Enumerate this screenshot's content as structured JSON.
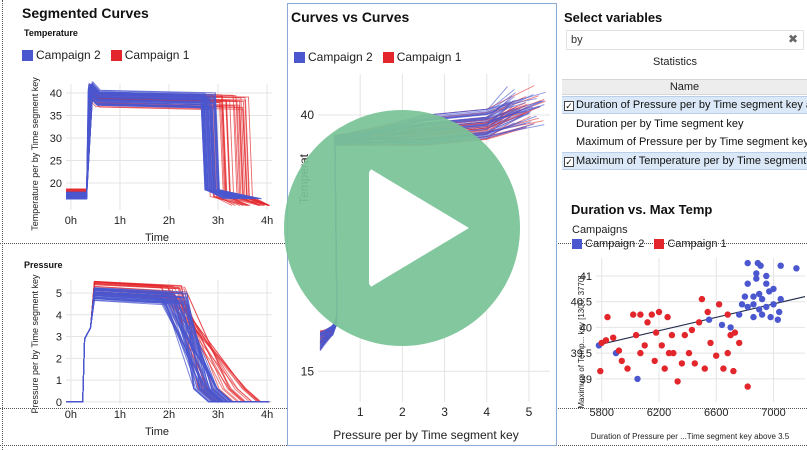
{
  "colors": {
    "campaign2": "#4a57cf",
    "campaign1": "#e3262b",
    "play": "#7ac397",
    "accent_selected": "#dbe8f7"
  },
  "left_panel": {
    "title": "Segmented Curves",
    "legend": [
      "Campaign 2",
      "Campaign 1"
    ],
    "temperature": {
      "subtitle": "Temperature",
      "ylabel": "Temperature per by Time segment key",
      "xlabel": "Time",
      "yticks": [
        "40",
        "35",
        "30",
        "25",
        "20"
      ],
      "xticks": [
        "0h",
        "1h",
        "2h",
        "3h",
        "4h"
      ]
    },
    "pressure": {
      "subtitle": "Pressure",
      "ylabel": "Pressure per by Time segment key",
      "xlabel": "Time",
      "yticks": [
        "5",
        "4",
        "3",
        "2",
        "1",
        "0"
      ],
      "xticks": [
        "0h",
        "1h",
        "2h",
        "3h",
        "4h"
      ]
    }
  },
  "middle_panel": {
    "title": "Curves vs Curves",
    "legend": [
      "Campaign 2",
      "Campaign 1"
    ],
    "ylabel": "Temperat",
    "xlabel": "Pressure per by Time segment key",
    "yticks": [
      "40",
      "15"
    ],
    "xticks": [
      "1",
      "2",
      "3",
      "4",
      "5"
    ]
  },
  "variables_panel": {
    "title": "Select variables",
    "search_value": "by",
    "clear_icon": "close-icon",
    "tab_label": "Statistics",
    "column_header": "Name",
    "rows": [
      {
        "label": "Duration of Pressure per by Time segment key al",
        "checked": true,
        "selected": true
      },
      {
        "label": "Duration per by Time segment key",
        "checked": false,
        "selected": false
      },
      {
        "label": "Maximum of Pressure per by Time segment key",
        "checked": false,
        "selected": false
      },
      {
        "label": "Maximum of Temperature per by Time segment key",
        "checked": true,
        "selected": true
      }
    ]
  },
  "scatter_panel": {
    "title": "Duration vs. Max Temp",
    "legend_title": "Campaigns",
    "legend": [
      "Campaign 2",
      "Campaign 1"
    ],
    "ylabel": "Maximum of Temp... key [1300, 3770]",
    "xlabel": "Duration of Pressure per ...Time segment key above 3.5"
  },
  "chart_data": [
    {
      "type": "line",
      "title": "Temperature",
      "xlabel": "Time",
      "ylabel": "Temperature per by Time segment key",
      "x_ticks": [
        "0h",
        "1h",
        "2h",
        "3h",
        "4h"
      ],
      "y_ticks": [
        20,
        25,
        30,
        35,
        40
      ],
      "grid": true,
      "series": [
        {
          "name": "Campaign 2",
          "values_desc": [
            [
              0,
              17
            ],
            [
              0.45,
              17
            ],
            [
              0.55,
              40
            ],
            [
              2.9,
              39
            ],
            [
              3.1,
              17
            ],
            [
              3.5,
              16.5
            ]
          ]
        },
        {
          "name": "Campaign 1",
          "values_desc": [
            [
              0,
              18
            ],
            [
              0.45,
              18
            ],
            [
              0.58,
              39
            ],
            [
              3.3,
              38
            ],
            [
              3.8,
              15
            ],
            [
              4.1,
              14.5
            ]
          ]
        }
      ]
    },
    {
      "type": "line",
      "title": "Pressure",
      "xlabel": "Time",
      "ylabel": "Pressure per by Time segment key",
      "x_ticks": [
        "0h",
        "1h",
        "2h",
        "3h",
        "4h"
      ],
      "y_ticks": [
        0,
        1,
        2,
        3,
        4,
        5
      ],
      "grid": true,
      "series": [
        {
          "name": "Campaign 2",
          "values_desc": [
            [
              0,
              0
            ],
            [
              0.3,
              0
            ],
            [
              0.35,
              3
            ],
            [
              0.55,
              5
            ],
            [
              2,
              4.6
            ],
            [
              3.1,
              0.2
            ],
            [
              3.4,
              0
            ]
          ]
        },
        {
          "name": "Campaign 1",
          "values_desc": [
            [
              0,
              0
            ],
            [
              0.3,
              0
            ],
            [
              0.38,
              3
            ],
            [
              0.6,
              5.2
            ],
            [
              2.1,
              5.1
            ],
            [
              3.7,
              0.1
            ],
            [
              4.0,
              0
            ]
          ]
        }
      ]
    },
    {
      "type": "scatter",
      "title": "Duration vs. Max Temp",
      "xlabel": "Duration of Pressure per ...Time segment key above 3.5",
      "ylabel": "Maximum of Temp... key [1300, 3770]",
      "x_ticks": [
        5800,
        6200,
        6600,
        7000
      ],
      "y_ticks": [
        39,
        39.5,
        40,
        40.5,
        41
      ],
      "xlim": [
        5760,
        7220
      ],
      "ylim": [
        38.55,
        41.35
      ],
      "series": [
        {
          "name": "Campaign 2",
          "points": [
            [
              6820,
              41.25
            ],
            [
              6880,
              41.05
            ],
            [
              6950,
              41.0
            ],
            [
              7050,
              41.2
            ],
            [
              6890,
              41.25
            ],
            [
              6910,
              41.2
            ],
            [
              7160,
              41.15
            ],
            [
              6820,
              40.85
            ],
            [
              6880,
              40.95
            ],
            [
              6950,
              40.85
            ],
            [
              6800,
              40.6
            ],
            [
              6860,
              40.6
            ],
            [
              6900,
              40.65
            ],
            [
              6920,
              40.55
            ],
            [
              6970,
              40.7
            ],
            [
              7000,
              40.75
            ],
            [
              7050,
              40.55
            ],
            [
              6780,
              40.45
            ],
            [
              6820,
              40.4
            ],
            [
              6860,
              40.45
            ],
            [
              6900,
              40.35
            ],
            [
              6950,
              40.4
            ],
            [
              7000,
              40.45
            ],
            [
              7040,
              40.3
            ],
            [
              6860,
              40.2
            ],
            [
              6920,
              40.25
            ],
            [
              6980,
              40.2
            ],
            [
              7030,
              40.15
            ],
            [
              6760,
              40.25
            ],
            [
              6700,
              40.0
            ],
            [
              6640,
              40.05
            ],
            [
              5780,
              39.65
            ],
            [
              5900,
              39.5
            ],
            [
              6050,
              39.0
            ],
            [
              6550,
              40.15
            ]
          ]
        },
        {
          "name": "Campaign 1",
          "points": [
            [
              5800,
              39.7
            ],
            [
              5830,
              39.75
            ],
            [
              5840,
              40.2
            ],
            [
              5880,
              39.8
            ],
            [
              5920,
              39.55
            ],
            [
              5940,
              39.35
            ],
            [
              5980,
              39.2
            ],
            [
              6020,
              40.25
            ],
            [
              6040,
              39.85
            ],
            [
              6070,
              40.25
            ],
            [
              6100,
              39.65
            ],
            [
              6120,
              40.1
            ],
            [
              6150,
              40.25
            ],
            [
              6180,
              39.9
            ],
            [
              6200,
              40.3
            ],
            [
              6220,
              39.65
            ],
            [
              6240,
              39.2
            ],
            [
              6270,
              39.5
            ],
            [
              6290,
              39.85
            ],
            [
              6300,
              39.5
            ],
            [
              6330,
              38.95
            ],
            [
              6360,
              39.3
            ],
            [
              6380,
              39.85
            ],
            [
              6410,
              39.5
            ],
            [
              6430,
              39.95
            ],
            [
              6450,
              39.3
            ],
            [
              6480,
              40.1
            ],
            [
              6500,
              40.55
            ],
            [
              6520,
              39.2
            ],
            [
              6540,
              40.3
            ],
            [
              6560,
              39.7
            ],
            [
              6600,
              39.45
            ],
            [
              6620,
              40.45
            ],
            [
              6650,
              39.2
            ],
            [
              6680,
              39.5
            ],
            [
              6700,
              39.85
            ],
            [
              6730,
              39.9
            ],
            [
              6760,
              39.7
            ],
            [
              6720,
              39.15
            ],
            [
              6820,
              38.85
            ],
            [
              6680,
              40.25
            ],
            [
              5790,
              39.15
            ],
            [
              6070,
              39.5
            ],
            [
              6170,
              39.35
            ],
            [
              6260,
              40.2
            ]
          ]
        }
      ],
      "trendline": [
        [
          5760,
          39.65
        ],
        [
          7220,
          40.6
        ]
      ]
    }
  ]
}
